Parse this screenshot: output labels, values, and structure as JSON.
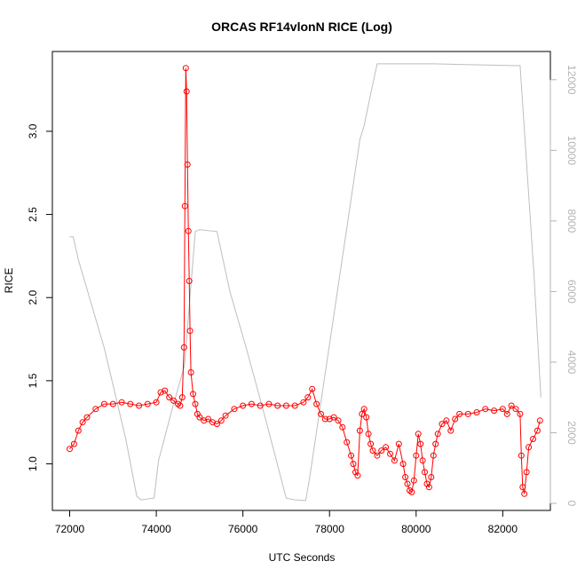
{
  "chart_data": {
    "type": "line",
    "title": "ORCAS RF14vlonN RICE (Log)",
    "xlabel": "UTC Seconds",
    "ylabel": "RICE",
    "xlim": [
      71600,
      83100
    ],
    "ylim": [
      0.72,
      3.48
    ],
    "ylim_right": [
      -200,
      12800
    ],
    "x_ticks": [
      72000,
      74000,
      76000,
      78000,
      80000,
      82000
    ],
    "y_ticks": [
      1.0,
      1.5,
      2.0,
      2.5,
      3.0
    ],
    "y_tick_labels": [
      "1.0",
      "1.5",
      "2.0",
      "2.5",
      "3.0"
    ],
    "y2_ticks": [
      0,
      2000,
      4000,
      6000,
      8000,
      10000,
      12000
    ],
    "grid": false,
    "colors": {
      "rice": "#ff0000",
      "altitude": "#bebebe",
      "axis": "#000000",
      "right_axis": "#b3b3b3"
    },
    "series": [
      {
        "axis": "left",
        "style": "line+open-circles",
        "x": [
          72000,
          72100,
          72200,
          72300,
          72400,
          72600,
          72800,
          73000,
          73200,
          73400,
          73600,
          73800,
          74000,
          74100,
          74200,
          74300,
          74400,
          74500,
          74550,
          74600,
          74640,
          74660,
          74680,
          74700,
          74720,
          74740,
          74760,
          74780,
          74800,
          74850,
          74900,
          74950,
          75000,
          75100,
          75200,
          75300,
          75400,
          75500,
          75600,
          75800,
          76000,
          76200,
          76400,
          76600,
          76800,
          77000,
          77200,
          77400,
          77500,
          77600,
          77700,
          77800,
          77900,
          78000,
          78100,
          78200,
          78300,
          78400,
          78500,
          78550,
          78600,
          78650,
          78700,
          78750,
          78800,
          78850,
          78900,
          78950,
          79000,
          79100,
          79200,
          79300,
          79400,
          79500,
          79600,
          79700,
          79750,
          79800,
          79850,
          79900,
          79950,
          80000,
          80050,
          80100,
          80150,
          80200,
          80250,
          80300,
          80350,
          80400,
          80450,
          80500,
          80600,
          80700,
          80800,
          80900,
          81000,
          81200,
          81400,
          81600,
          81800,
          82000,
          82100,
          82200,
          82300,
          82400,
          82430,
          82460,
          82500,
          82550,
          82600,
          82700,
          82800,
          82860
        ],
        "y": [
          1.09,
          1.12,
          1.2,
          1.25,
          1.28,
          1.33,
          1.36,
          1.36,
          1.37,
          1.36,
          1.35,
          1.36,
          1.37,
          1.43,
          1.44,
          1.4,
          1.38,
          1.36,
          1.35,
          1.4,
          1.7,
          2.55,
          3.38,
          3.24,
          2.8,
          2.4,
          2.1,
          1.8,
          1.55,
          1.42,
          1.36,
          1.3,
          1.28,
          1.26,
          1.27,
          1.25,
          1.24,
          1.26,
          1.29,
          1.33,
          1.35,
          1.36,
          1.35,
          1.36,
          1.35,
          1.35,
          1.35,
          1.37,
          1.4,
          1.45,
          1.36,
          1.3,
          1.27,
          1.27,
          1.28,
          1.26,
          1.22,
          1.13,
          1.05,
          1.0,
          0.95,
          0.93,
          1.2,
          1.3,
          1.33,
          1.28,
          1.18,
          1.12,
          1.08,
          1.05,
          1.08,
          1.1,
          1.06,
          1.02,
          1.12,
          1.0,
          0.92,
          0.88,
          0.84,
          0.83,
          0.9,
          1.05,
          1.18,
          1.12,
          1.02,
          0.95,
          0.88,
          0.86,
          0.92,
          1.05,
          1.12,
          1.18,
          1.24,
          1.26,
          1.2,
          1.27,
          1.3,
          1.3,
          1.31,
          1.33,
          1.32,
          1.33,
          1.3,
          1.35,
          1.33,
          1.3,
          1.05,
          0.86,
          0.82,
          0.95,
          1.1,
          1.15,
          1.2,
          1.26
        ]
      },
      {
        "axis": "right",
        "style": "line",
        "x": [
          72000,
          72080,
          72200,
          72800,
          73300,
          73550,
          73650,
          73950,
          74050,
          74350,
          74650,
          74900,
          75000,
          75400,
          75700,
          76100,
          76500,
          77000,
          77200,
          77450,
          77550,
          78400,
          78700,
          78800,
          78950,
          79100,
          80400,
          82200,
          82400,
          82720,
          82880
        ],
        "y": [
          7550,
          7550,
          6900,
          4400,
          1800,
          200,
          100,
          150,
          1200,
          2600,
          3900,
          7700,
          7750,
          7700,
          6000,
          4300,
          2500,
          150,
          100,
          80,
          800,
          7800,
          10300,
          10700,
          11600,
          12450,
          12450,
          12400,
          12400,
          6500,
          3000
        ]
      }
    ]
  }
}
